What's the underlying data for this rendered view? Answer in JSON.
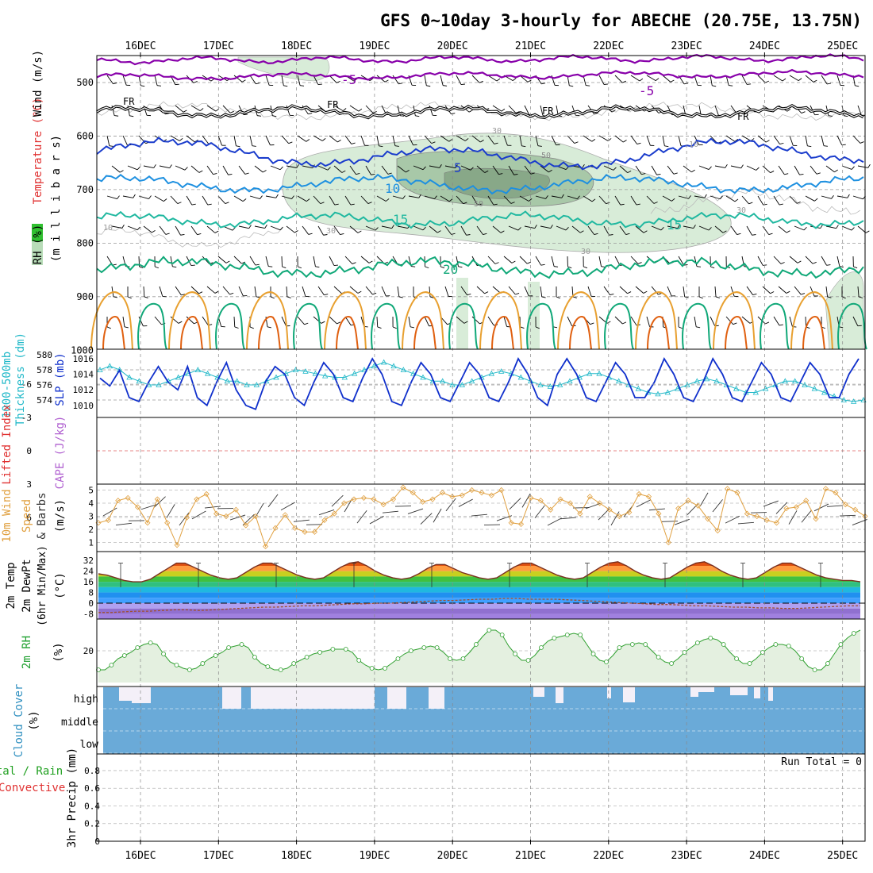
{
  "title": "GFS 0~10day 3-hourly for ABECHE (20.75E, 13.75N)",
  "dates": [
    "16DEC",
    "17DEC",
    "18DEC",
    "19DEC",
    "20DEC",
    "21DEC",
    "22DEC",
    "23DEC",
    "24DEC",
    "25DEC"
  ],
  "colors": {
    "purple": "#8800aa",
    "freeze": "#000000",
    "blue": "#1a3ccc",
    "lightblue": "#1e90e0",
    "teal": "#20b8a0",
    "green": "#10a878",
    "orange": "#e8a030",
    "darkorange": "#e06010",
    "rh_fill": "#d8ecd8",
    "rh_fill2": "#a8c8a8",
    "rh_fill3": "#88a888",
    "cloud": "#6aaad8",
    "slp": "#1030cc",
    "thick": "#20b8c8",
    "wind10": "#e0a040"
  },
  "panels": {
    "upper": {
      "ylabel_wind": "Wind (m/s)",
      "ylabel_temp": "Temperature (°C)",
      "ylabel_mb": "(m i l l i b a r s)",
      "ylabel_rh": "RH (%)",
      "ticks": [
        "500",
        "600",
        "700",
        "800",
        "900",
        "1000"
      ],
      "contour_labels": {
        "m5a": "-5",
        "m5b": "-5",
        "fr1": "FR",
        "fr2": "FR",
        "fr3": "FR",
        "fr4": "FR",
        "p5": "5",
        "p10": "10",
        "p15a": "15",
        "p15b": "15",
        "p20": "20",
        "r10a": "10",
        "r10b": "10",
        "r30a": "30",
        "r30b": "30",
        "r30c": "30",
        "r30d": "30",
        "r50a": "50",
        "r50b": "50"
      }
    },
    "thickness": {
      "ylabel1": "1000-500mb",
      "ylabel2": "Thickness (dm)",
      "ylabel3": "SLP (mb)",
      "left_ticks": [
        "580",
        "578",
        "576",
        "574"
      ],
      "right_ticks": [
        "1016",
        "1014",
        "1012",
        "1010"
      ]
    },
    "cape": {
      "ylabel1": "Lifted Index",
      "ylabel2": "CAPE (J/kg)",
      "ticks": [
        "-6",
        "-3",
        "0",
        "3",
        "6"
      ]
    },
    "wind10": {
      "ylabel1": "10m Wind",
      "ylabel2": "Speed",
      "ylabel3": "& Barbs",
      "ylabel4": "(m/s)",
      "ticks": [
        "5",
        "4",
        "3",
        "2",
        "1"
      ]
    },
    "temp": {
      "ylabel1": "2m Temp",
      "ylabel2": "2m DewPt",
      "ylabel3": "(6hr Min/Max)",
      "ylabel4": "(°C)",
      "ticks": [
        "32",
        "24",
        "16",
        "8",
        "0",
        "-8"
      ]
    },
    "rh": {
      "ylabel1": "2m RH",
      "ylabel2": "(%)",
      "ticks": [
        "20"
      ]
    },
    "cloud": {
      "ylabel1": "Cloud Cover",
      "ylabel2": "(%)",
      "levels": [
        "high",
        "middle",
        "low"
      ]
    },
    "precip": {
      "ylabel1": "Total / Rain",
      "ylabel2": "Convective",
      "ylabel3": "3hr Precip (mm)",
      "run_total": "Run Total = 0",
      "ticks": [
        "0.8",
        "0.6",
        "0.4",
        "0.2",
        "0"
      ]
    }
  },
  "chart_data": {
    "type": "line",
    "x": [
      "16DEC",
      "17DEC",
      "18DEC",
      "19DEC",
      "20DEC",
      "21DEC",
      "22DEC",
      "23DEC",
      "24DEC",
      "25DEC"
    ],
    "slp_mb": [
      1013.5,
      1012.5,
      1014.5,
      1011.0,
      1010.5,
      1013.0,
      1015.0,
      1013.0,
      1012.0,
      1015.0,
      1011.0,
      1010.0,
      1013.0,
      1015.5,
      1012.0,
      1010.0,
      1009.5,
      1013.0,
      1015.0,
      1014.0,
      1011.0,
      1010.0,
      1013.0,
      1015.5,
      1014.0,
      1011.0,
      1010.5,
      1013.5,
      1016.0,
      1014.0,
      1010.5,
      1010.0,
      1013.0,
      1015.5,
      1014.0,
      1011.0,
      1010.5,
      1013.0,
      1015.5,
      1014.0,
      1011.0,
      1010.5,
      1013.0,
      1016.0,
      1014.0,
      1011.0,
      1010.0,
      1014.0,
      1016.0,
      1014.0,
      1011.0,
      1010.5,
      1013.0,
      1015.5,
      1014.0,
      1011.0,
      1011.0,
      1013.0,
      1016.0,
      1014.0,
      1011.0,
      1010.5,
      1013.0,
      1016.0,
      1014.0,
      1011.0,
      1010.5,
      1013.0,
      1015.5,
      1014.0,
      1011.0,
      1010.5,
      1013.0,
      1015.5,
      1014.0,
      1011.0,
      1011.0,
      1014.0,
      1016.0
    ],
    "thickness_dm": [
      578.0,
      578.5,
      578.0,
      577.0,
      576.5,
      576.0,
      576.0,
      576.5,
      577.0,
      577.5,
      578.0,
      577.5,
      577.0,
      576.5,
      576.5,
      576.0,
      576.0,
      576.5,
      577.0,
      577.5,
      578.0,
      577.8,
      577.5,
      577.2,
      577.0,
      577.0,
      577.5,
      578.0,
      578.5,
      579.0,
      578.5,
      578.0,
      577.5,
      577.0,
      576.5,
      576.5,
      576.0,
      576.0,
      576.5,
      577.0,
      577.5,
      577.8,
      577.5,
      577.0,
      576.5,
      576.0,
      575.8,
      576.0,
      576.5,
      577.0,
      577.5,
      577.5,
      577.0,
      576.5,
      576.0,
      575.5,
      575.0,
      574.8,
      575.0,
      575.5,
      576.0,
      576.5,
      576.8,
      576.5,
      576.0,
      575.5,
      575.0,
      575.0,
      575.5,
      576.0,
      576.5,
      576.5,
      576.0,
      575.5,
      575.0,
      574.5,
      574.0,
      573.8,
      574.0
    ],
    "wind10_ms": [
      2.5,
      2.7,
      4.2,
      4.4,
      3.7,
      2.5,
      4.3,
      2.5,
      0.8,
      2.9,
      4.3,
      4.7,
      3.2,
      3.0,
      3.5,
      2.3,
      3.0,
      0.7,
      2.1,
      3.1,
      2.1,
      1.8,
      1.8,
      2.7,
      3.2,
      4.0,
      4.3,
      4.4,
      4.3,
      3.9,
      4.3,
      5.2,
      4.8,
      4.1,
      4.3,
      4.8,
      4.5,
      4.6,
      5.0,
      4.8,
      4.6,
      5.0,
      2.5,
      2.4,
      4.4,
      4.2,
      3.5,
      4.3,
      4.0,
      3.2,
      4.5,
      4.0,
      3.5,
      3.0,
      3.3,
      4.7,
      4.5,
      3.2,
      1.0,
      3.6,
      4.2,
      3.8,
      2.8,
      1.9,
      5.1,
      4.8,
      3.2,
      3.0,
      2.7,
      2.5,
      3.6,
      3.7,
      4.2,
      2.8,
      5.1,
      4.8,
      3.9,
      3.5,
      3.0
    ],
    "temp2m_c": [
      22,
      21,
      19,
      17,
      16,
      16,
      18,
      22,
      26,
      30,
      30,
      27,
      24,
      21,
      19,
      18,
      19,
      23,
      27,
      30,
      30,
      27,
      24,
      21,
      19,
      18,
      19,
      23,
      27,
      30,
      31,
      28,
      24,
      21,
      19,
      18,
      19,
      22,
      26,
      29,
      29,
      26,
      23,
      21,
      19,
      18,
      19,
      23,
      27,
      30,
      30,
      27,
      24,
      21,
      19,
      18,
      19,
      23,
      27,
      30,
      31,
      28,
      24,
      21,
      19,
      18,
      19,
      23,
      27,
      30,
      31,
      28,
      24,
      21,
      19,
      18,
      19,
      23,
      27,
      30,
      30,
      27,
      24,
      21,
      19,
      18,
      17,
      17,
      16
    ],
    "dewpt2m_c": [
      -7,
      -7,
      -6.5,
      -6,
      -6,
      -5.5,
      -5,
      -5,
      -5.5,
      -5,
      -4.5,
      -4,
      -3.5,
      -3,
      -3,
      -2.5,
      -2,
      -2,
      -1.5,
      -1,
      -0.5,
      -0.5,
      0,
      0,
      0.5,
      1,
      1.5,
      2,
      2,
      2.5,
      3,
      3,
      3.5,
      3.5,
      3,
      3,
      3,
      2.5,
      2,
      1.5,
      1,
      0.5,
      0,
      -0.5,
      -1,
      -1,
      -1.5,
      -2,
      -2,
      -2.5,
      -3,
      -3,
      -3.5,
      -3.5,
      -4,
      -4,
      -3.5,
      -3,
      -2.5,
      -2,
      -2
    ],
    "rh2m_pct": [
      8,
      8,
      11,
      15,
      17,
      19,
      22,
      24,
      25,
      24,
      18,
      13,
      11,
      9,
      8,
      9,
      12,
      15,
      17,
      19,
      22,
      23,
      24,
      22,
      16,
      12,
      10,
      8,
      8,
      9,
      12,
      14,
      16,
      18,
      19,
      20,
      21,
      21,
      21,
      19,
      14,
      11,
      9,
      8,
      9,
      12,
      15,
      18,
      20,
      21,
      22,
      23,
      22,
      19,
      15,
      14,
      15,
      19,
      24,
      29,
      33,
      33,
      30,
      23,
      18,
      14,
      14,
      17,
      22,
      26,
      28,
      29,
      30,
      31,
      30,
      24,
      18,
      14,
      13,
      17,
      22,
      24,
      24,
      25,
      24,
      20,
      16,
      13,
      12,
      15,
      19,
      22,
      25,
      27,
      28,
      27,
      24,
      19,
      15,
      12,
      12,
      15,
      19,
      22,
      24,
      24,
      23,
      20,
      15,
      10,
      8,
      8,
      12,
      18,
      24,
      28,
      31,
      33
    ]
  }
}
